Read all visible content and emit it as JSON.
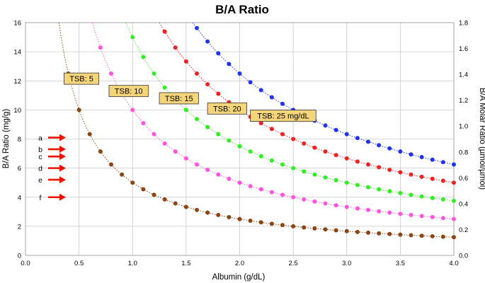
{
  "chart_data": {
    "type": "scatter",
    "title": "B/A Ratio",
    "xlabel": "Albumin (g/dL)",
    "ylabel": "B/A Ratio (mg/g)",
    "y2label": "B/A Molar Ratio (µmol/µmol)",
    "xlim": [
      0,
      4
    ],
    "ylim": [
      0,
      16
    ],
    "y2lim": [
      0,
      1.8
    ],
    "x_ticks": [
      "0.0",
      "0.5",
      "1.0",
      "1.5",
      "2.0",
      "2.5",
      "3.0",
      "3.5",
      "4.0"
    ],
    "y_ticks": [
      "0",
      "2",
      "4",
      "6",
      "8",
      "10",
      "12",
      "14",
      "16"
    ],
    "y2_ticks": [
      "0.0",
      "0.2",
      "0.4",
      "0.6",
      "0.8",
      "1.0",
      "1.2",
      "1.4",
      "1.6",
      "1.8"
    ],
    "grid": true,
    "series": [
      {
        "name": "TSB: 5",
        "tsb": 5,
        "color": "#8b4513",
        "x_start": 0.4,
        "x_end": 4.0,
        "x_step": 0.1
      },
      {
        "name": "TSB: 10",
        "tsb": 10,
        "color": "#ff55dd",
        "x_start": 0.7,
        "x_end": 4.0,
        "x_step": 0.1
      },
      {
        "name": "TSB: 15",
        "tsb": 15,
        "color": "#33ee22",
        "x_start": 1.0,
        "x_end": 4.0,
        "x_step": 0.1
      },
      {
        "name": "TSB: 20",
        "tsb": 20,
        "color": "#ee2222",
        "x_start": 1.3,
        "x_end": 4.0,
        "x_step": 0.1
      },
      {
        "name": "TSB: 25 mg/dL",
        "tsb": 25,
        "color": "#2233ee",
        "x_start": 1.6,
        "x_end": 4.0,
        "x_step": 0.1
      }
    ],
    "annotations": [
      {
        "text": "TSB: 5",
        "x": 0.36,
        "y": 12.15
      },
      {
        "text": "TSB: 10",
        "x": 0.78,
        "y": 11.3
      },
      {
        "text": "TSB: 15",
        "x": 1.25,
        "y": 10.8
      },
      {
        "text": "TSB: 20",
        "x": 1.7,
        "y": 10.1
      },
      {
        "text": "TSB: 25 mg/dL",
        "x": 2.1,
        "y": 9.6
      }
    ],
    "markers": [
      {
        "label": "a",
        "y": 8.1
      },
      {
        "label": "b",
        "y": 7.3
      },
      {
        "label": "c",
        "y": 6.8
      },
      {
        "label": "d",
        "y": 6.0
      },
      {
        "label": "e",
        "y": 5.2
      },
      {
        "label": "f",
        "y": 4.0
      }
    ],
    "marker_color": "#ee1100"
  }
}
